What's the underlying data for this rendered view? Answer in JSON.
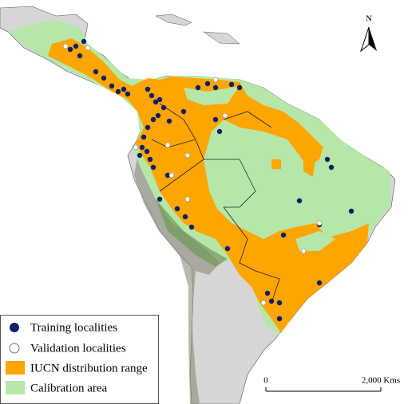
{
  "north": "N",
  "legend": {
    "items": [
      "Training localities",
      "Validation localities",
      "IUCN distribution range",
      "Calibration area"
    ]
  },
  "scale_bar": {
    "start": "0",
    "end": "2,000 Kms"
  }
}
